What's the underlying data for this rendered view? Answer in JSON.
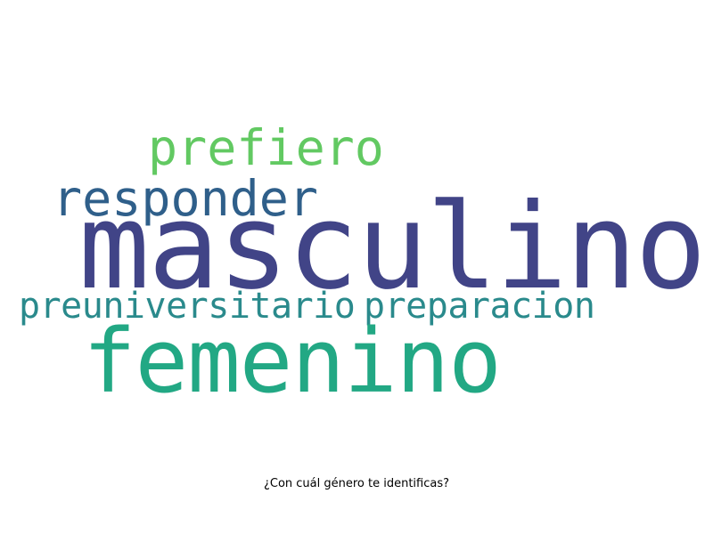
{
  "title": "¿Con cuál género te identificas?",
  "words": {
    "masculino": {
      "text": "masculino",
      "color": "#414487"
    },
    "femenino": {
      "text": "femenino",
      "color": "#22a884"
    },
    "responder": {
      "text": "responder",
      "color": "#2f5f8a"
    },
    "prefiero": {
      "text": "prefiero",
      "color": "#62c962"
    },
    "preuniversitario": {
      "text": "preuniversitario",
      "color": "#2a8a8c"
    },
    "preparacion": {
      "text": "preparacion",
      "color": "#2a8a8c"
    }
  }
}
